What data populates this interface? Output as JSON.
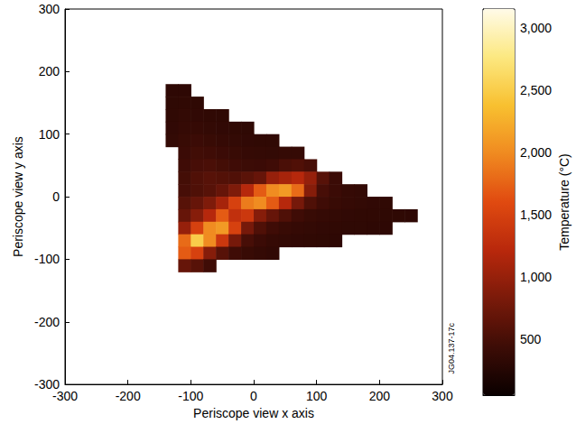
{
  "chart_data": {
    "type": "heatmap",
    "x_label": "Periscope view x axis",
    "y_label": "Periscope view y axis",
    "annotation": "JG04.137-17c",
    "xlim": [
      -300,
      300
    ],
    "ylim": [
      -300,
      300
    ],
    "xticks": [
      -300,
      -200,
      -100,
      0,
      100,
      200,
      300
    ],
    "yticks": [
      -300,
      -200,
      -100,
      0,
      100,
      200,
      300
    ],
    "grid": false,
    "x": [
      -130,
      -110,
      -90,
      -70,
      -50,
      -30,
      -10,
      10,
      30,
      50,
      70,
      90,
      110,
      130,
      150,
      170,
      190,
      210,
      230,
      250
    ],
    "y": [
      170,
      150,
      130,
      110,
      90,
      70,
      50,
      30,
      10,
      -10,
      -30,
      -50,
      -70,
      -90,
      -110
    ],
    "values": [
      [
        320,
        320,
        null,
        null,
        null,
        null,
        null,
        null,
        null,
        null,
        null,
        null,
        null,
        null,
        null,
        null,
        null,
        null,
        null,
        null
      ],
      [
        330,
        340,
        330,
        null,
        null,
        null,
        null,
        null,
        null,
        null,
        null,
        null,
        null,
        null,
        null,
        null,
        null,
        null,
        null,
        null
      ],
      [
        340,
        360,
        350,
        340,
        330,
        null,
        null,
        null,
        null,
        null,
        null,
        null,
        null,
        null,
        null,
        null,
        null,
        null,
        null,
        null
      ],
      [
        350,
        380,
        380,
        360,
        350,
        340,
        330,
        null,
        null,
        null,
        null,
        null,
        null,
        null,
        null,
        null,
        null,
        null,
        null,
        null
      ],
      [
        360,
        400,
        420,
        400,
        380,
        360,
        350,
        340,
        340,
        null,
        null,
        null,
        null,
        null,
        null,
        null,
        null,
        null,
        null,
        null
      ],
      [
        null,
        420,
        460,
        450,
        420,
        400,
        380,
        370,
        360,
        380,
        380,
        null,
        null,
        null,
        null,
        null,
        null,
        null,
        null,
        null
      ],
      [
        null,
        450,
        500,
        520,
        480,
        450,
        430,
        420,
        450,
        520,
        560,
        500,
        null,
        null,
        null,
        null,
        null,
        null,
        null,
        null
      ],
      [
        null,
        480,
        560,
        600,
        580,
        560,
        620,
        700,
        1000,
        1100,
        1200,
        1000,
        600,
        420,
        null,
        null,
        null,
        null,
        null,
        null
      ],
      [
        null,
        500,
        550,
        600,
        700,
        850,
        1200,
        1700,
        2000,
        2100,
        1800,
        900,
        500,
        420,
        380,
        360,
        null,
        null,
        null,
        null
      ],
      [
        null,
        600,
        700,
        850,
        1100,
        1500,
        1900,
        2000,
        1700,
        1200,
        800,
        550,
        450,
        400,
        380,
        360,
        350,
        340,
        null,
        null
      ],
      [
        null,
        700,
        900,
        1200,
        1700,
        1300,
        1400,
        900,
        700,
        550,
        450,
        400,
        380,
        360,
        350,
        340,
        340,
        330,
        330,
        320
      ],
      [
        null,
        1000,
        1500,
        2000,
        2100,
        1500,
        800,
        550,
        450,
        400,
        380,
        360,
        350,
        340,
        330,
        330,
        320,
        320,
        null,
        null
      ],
      [
        null,
        1800,
        2500,
        2000,
        1400,
        800,
        500,
        420,
        380,
        360,
        350,
        340,
        330,
        320,
        null,
        null,
        null,
        null,
        null,
        null
      ],
      [
        null,
        1700,
        1500,
        900,
        600,
        450,
        400,
        370,
        350,
        null,
        null,
        null,
        null,
        null,
        null,
        null,
        null,
        null,
        null,
        null
      ],
      [
        null,
        700,
        600,
        450,
        null,
        null,
        null,
        null,
        null,
        null,
        null,
        null,
        null,
        null,
        null,
        null,
        null,
        null,
        null,
        null
      ]
    ],
    "colorbar": {
      "label": "Temperature (°C)",
      "range": [
        50,
        3150
      ],
      "ticks": [
        500,
        1000,
        1500,
        2000,
        2500,
        3000
      ]
    }
  }
}
